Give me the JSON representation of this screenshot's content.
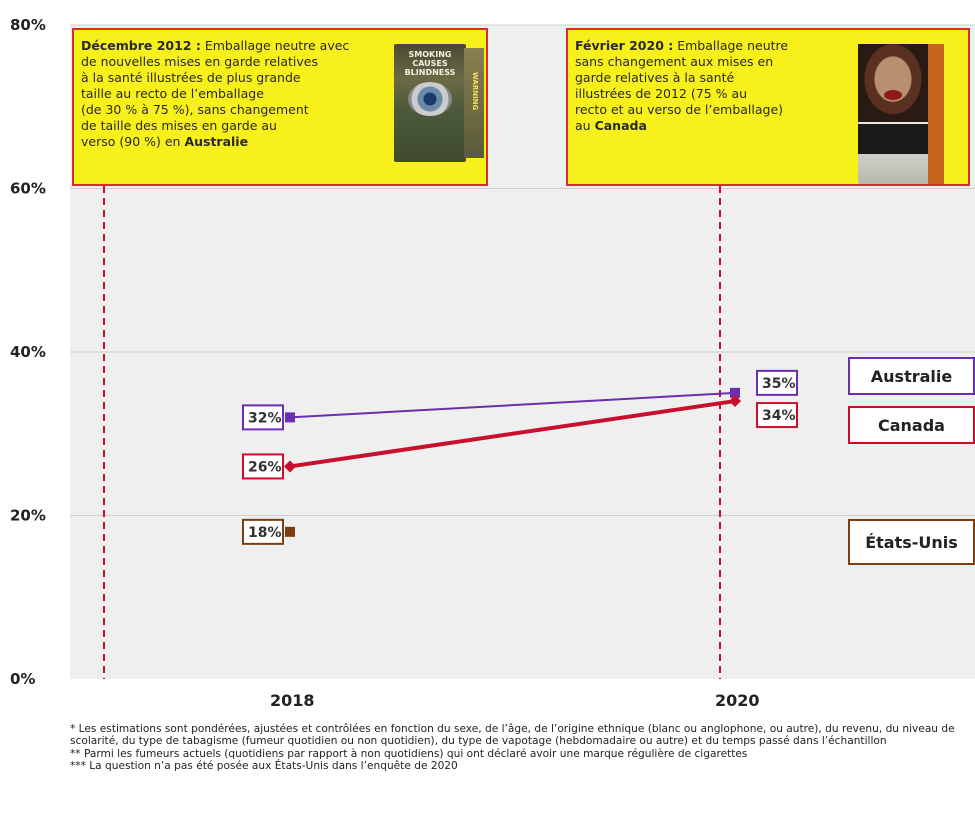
{
  "chart_data": {
    "type": "line",
    "x": [
      "2018",
      "2020"
    ],
    "ylim": [
      0,
      80
    ],
    "yticks": [
      "0%",
      "20%",
      "40%",
      "60%",
      "80%"
    ],
    "grid": true,
    "series": [
      {
        "name": "Australie",
        "color": "#6a2fb0",
        "marker": "square",
        "values": [
          32,
          35
        ],
        "labels": [
          "32%",
          "35%"
        ],
        "label_border": "#6a2fb0"
      },
      {
        "name": "Canada",
        "color": "#c8102e",
        "marker": "diamond",
        "values": [
          26,
          34
        ],
        "labels": [
          "26%",
          "34%"
        ],
        "label_border": "#c8102e"
      },
      {
        "name": "États-Unis",
        "color": "#7a3e12",
        "marker": "square",
        "values": [
          18,
          null
        ],
        "labels": [
          "18%",
          null
        ],
        "label_border": "#7a3e12"
      }
    ],
    "events": [
      {
        "x": "2012-12",
        "lines": [
          [
            {
              "t": "Décembre 2012 :",
              "b": true
            },
            {
              "t": " Emballage neutre avec",
              "b": false
            }
          ],
          [
            {
              "t": "de nouvelles mises en garde relatives",
              "b": false
            }
          ],
          [
            {
              "t": "à la santé illustrées de plus grande",
              "b": false
            }
          ],
          [
            {
              "t": "taille au recto de l’emballage",
              "b": false
            }
          ],
          [
            {
              "t": "(de 30 % à 75 %), sans changement",
              "b": false
            }
          ],
          [
            {
              "t": "de taille des mises en garde au",
              "b": false
            }
          ],
          [
            {
              "t": "verso (90 %) en ",
              "b": false
            },
            {
              "t": "Australie",
              "b": true
            }
          ]
        ],
        "pack": {
          "title": "SMOKING CAUSES BLINDNESS",
          "side": "WARNING"
        }
      },
      {
        "x": "2020-02",
        "lines": [
          [
            {
              "t": "Février 2020 :",
              "b": true
            },
            {
              "t": " Emballage neutre",
              "b": false
            }
          ],
          [
            {
              "t": "sans changement aux mises en",
              "b": false
            }
          ],
          [
            {
              "t": "garde relatives à la santé",
              "b": false
            }
          ],
          [
            {
              "t": "illustrées de 2012 (75 % au",
              "b": false
            }
          ],
          [
            {
              "t": "recto et au verso de l’emballage)",
              "b": false
            }
          ],
          [
            {
              "t": "au ",
              "b": false
            },
            {
              "t": "Canada",
              "b": true
            }
          ]
        ]
      }
    ],
    "event_line_color": "#c8102e",
    "legend": {
      "placement": "right",
      "items": [
        "Australie",
        "Canada",
        "États-Unis"
      ]
    }
  },
  "footnotes": [
    "* Les estimations sont pondérées, ajustées et contrôlées en fonction du sexe, de l’âge, de l’origine ethnique (blanc ou anglophone, ou autre), du revenu, du niveau de scolarité, du type de tabagisme (fumeur quotidien ou non quotidien), du type de vapotage (hebdomadaire ou autre) et du temps passé dans l’échantillon",
    "** Parmi les fumeurs actuels (quotidiens par rapport à non quotidiens) qui ont déclaré avoir une marque régulière de cigarettes",
    "*** La question n’a pas été posée aux États-Unis dans l’enquête de 2020"
  ]
}
